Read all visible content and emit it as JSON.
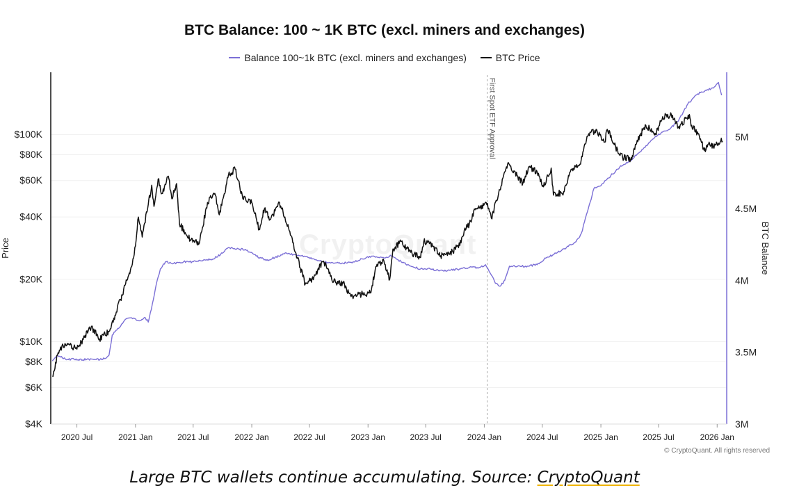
{
  "chart_data": {
    "type": "line",
    "title": "BTC Balance: 100 ~ 1K BTC (excl. miners and exchanges)",
    "legend": [
      "Balance 100~1k BTC (excl. miners and exchanges)",
      "BTC Price"
    ],
    "legend_placement": "top-center",
    "grid": true,
    "xlim": [
      "2020-04-10",
      "2026-01-31"
    ],
    "x_ticks": [
      {
        "date": "2020-07-01",
        "label": "2020 Jul"
      },
      {
        "date": "2021-01-01",
        "label": "2021 Jan"
      },
      {
        "date": "2021-07-01",
        "label": "2021 Jul"
      },
      {
        "date": "2022-01-01",
        "label": "2022 Jan"
      },
      {
        "date": "2022-07-01",
        "label": "2022 Jul"
      },
      {
        "date": "2023-01-01",
        "label": "2023 Jan"
      },
      {
        "date": "2023-07-01",
        "label": "2023 Jul"
      },
      {
        "date": "2024-01-01",
        "label": "2024 Jan"
      },
      {
        "date": "2024-07-01",
        "label": "2024 Jul"
      },
      {
        "date": "2025-01-01",
        "label": "2025 Jan"
      },
      {
        "date": "2025-07-01",
        "label": "2025 Jul"
      },
      {
        "date": "2026-01-01",
        "label": "2026 Jan"
      }
    ],
    "left_axis": {
      "label": "Price",
      "scale": "log",
      "range": [
        4000,
        200000
      ],
      "ticks": [
        {
          "value": 4000,
          "label": "$4K"
        },
        {
          "value": 6000,
          "label": "$6K"
        },
        {
          "value": 8000,
          "label": "$8K"
        },
        {
          "value": 10000,
          "label": "$10K"
        },
        {
          "value": 20000,
          "label": "$20K"
        },
        {
          "value": 40000,
          "label": "$40K"
        },
        {
          "value": 60000,
          "label": "$60K"
        },
        {
          "value": 80000,
          "label": "$80K"
        },
        {
          "value": 100000,
          "label": "$100K"
        }
      ]
    },
    "right_axis": {
      "label": "BTC Balance",
      "scale": "linear",
      "range": [
        3000000,
        5450000
      ],
      "ticks": [
        {
          "value": 3000000,
          "label": "3M"
        },
        {
          "value": 3500000,
          "label": "3.5M"
        },
        {
          "value": 4000000,
          "label": "4M"
        },
        {
          "value": 4500000,
          "label": "4.5M"
        },
        {
          "value": 5000000,
          "label": "5M"
        }
      ]
    },
    "annotation": {
      "date": "2024-01-10",
      "label": "First Spot ETF Approval"
    },
    "series": [
      {
        "name": "Balance 100~1k BTC (excl. miners and exchanges)",
        "color": "#7b6fd6",
        "axis": "right",
        "points": [
          [
            "2020-04-15",
            3440000
          ],
          [
            "2020-05-01",
            3480000
          ],
          [
            "2020-06-01",
            3450000
          ],
          [
            "2020-08-01",
            3450000
          ],
          [
            "2020-09-20",
            3450000
          ],
          [
            "2020-10-10",
            3480000
          ],
          [
            "2020-10-20",
            3620000
          ],
          [
            "2020-11-15",
            3680000
          ],
          [
            "2020-12-01",
            3730000
          ],
          [
            "2020-12-20",
            3740000
          ],
          [
            "2021-01-15",
            3720000
          ],
          [
            "2021-02-01",
            3740000
          ],
          [
            "2021-02-10",
            3710000
          ],
          [
            "2021-02-20",
            3800000
          ],
          [
            "2021-03-01",
            3900000
          ],
          [
            "2021-03-10",
            4000000
          ],
          [
            "2021-03-20",
            4080000
          ],
          [
            "2021-04-05",
            4130000
          ],
          [
            "2021-05-01",
            4120000
          ],
          [
            "2021-06-01",
            4130000
          ],
          [
            "2021-07-01",
            4130000
          ],
          [
            "2021-08-01",
            4140000
          ],
          [
            "2021-09-01",
            4150000
          ],
          [
            "2021-10-01",
            4190000
          ],
          [
            "2021-10-20",
            4230000
          ],
          [
            "2021-11-20",
            4220000
          ],
          [
            "2021-12-15",
            4210000
          ],
          [
            "2022-01-15",
            4170000
          ],
          [
            "2022-02-15",
            4140000
          ],
          [
            "2022-03-15",
            4160000
          ],
          [
            "2022-04-15",
            4190000
          ],
          [
            "2022-05-15",
            4180000
          ],
          [
            "2022-06-15",
            4170000
          ],
          [
            "2022-07-15",
            4150000
          ],
          [
            "2022-08-15",
            4130000
          ],
          [
            "2022-09-15",
            4120000
          ],
          [
            "2022-10-15",
            4120000
          ],
          [
            "2022-11-15",
            4130000
          ],
          [
            "2022-12-15",
            4150000
          ],
          [
            "2023-01-15",
            4170000
          ],
          [
            "2023-02-15",
            4160000
          ],
          [
            "2023-03-15",
            4170000
          ],
          [
            "2023-04-15",
            4130000
          ],
          [
            "2023-05-15",
            4100000
          ],
          [
            "2023-06-15",
            4080000
          ],
          [
            "2023-07-15",
            4080000
          ],
          [
            "2023-08-15",
            4070000
          ],
          [
            "2023-09-15",
            4070000
          ],
          [
            "2023-10-15",
            4080000
          ],
          [
            "2023-11-15",
            4090000
          ],
          [
            "2023-12-15",
            4090000
          ],
          [
            "2024-01-05",
            4110000
          ],
          [
            "2024-01-20",
            4050000
          ],
          [
            "2024-02-05",
            3980000
          ],
          [
            "2024-02-20",
            3960000
          ],
          [
            "2024-03-05",
            4000000
          ],
          [
            "2024-03-20",
            4100000
          ],
          [
            "2024-04-15",
            4100000
          ],
          [
            "2024-05-15",
            4100000
          ],
          [
            "2024-06-15",
            4110000
          ],
          [
            "2024-07-15",
            4160000
          ],
          [
            "2024-08-15",
            4190000
          ],
          [
            "2024-09-15",
            4230000
          ],
          [
            "2024-10-15",
            4270000
          ],
          [
            "2024-11-01",
            4330000
          ],
          [
            "2024-11-20",
            4480000
          ],
          [
            "2024-12-10",
            4640000
          ],
          [
            "2025-01-01",
            4660000
          ],
          [
            "2025-02-01",
            4730000
          ],
          [
            "2025-03-01",
            4790000
          ],
          [
            "2025-04-01",
            4830000
          ],
          [
            "2025-05-01",
            4890000
          ],
          [
            "2025-06-01",
            4960000
          ],
          [
            "2025-07-01",
            5020000
          ],
          [
            "2025-08-01",
            5050000
          ],
          [
            "2025-09-01",
            5110000
          ],
          [
            "2025-10-01",
            5230000
          ],
          [
            "2025-11-01",
            5300000
          ],
          [
            "2025-12-01",
            5330000
          ],
          [
            "2025-12-20",
            5340000
          ],
          [
            "2026-01-05",
            5380000
          ],
          [
            "2026-01-15",
            5290000
          ]
        ]
      },
      {
        "name": "BTC Price",
        "color": "#111111",
        "axis": "left",
        "points": [
          [
            "2020-04-15",
            6800
          ],
          [
            "2020-05-01",
            8600
          ],
          [
            "2020-05-15",
            9500
          ],
          [
            "2020-06-01",
            9800
          ],
          [
            "2020-07-01",
            9200
          ],
          [
            "2020-07-25",
            10500
          ],
          [
            "2020-08-15",
            11800
          ],
          [
            "2020-09-10",
            10300
          ],
          [
            "2020-10-10",
            11200
          ],
          [
            "2020-10-25",
            13000
          ],
          [
            "2020-11-15",
            16000
          ],
          [
            "2020-12-01",
            19000
          ],
          [
            "2020-12-20",
            23000
          ],
          [
            "2021-01-01",
            29000
          ],
          [
            "2021-01-10",
            40000
          ],
          [
            "2021-01-22",
            32000
          ],
          [
            "2021-02-10",
            46000
          ],
          [
            "2021-02-21",
            57000
          ],
          [
            "2021-02-28",
            45000
          ],
          [
            "2021-03-13",
            61000
          ],
          [
            "2021-03-25",
            52000
          ],
          [
            "2021-04-14",
            63000
          ],
          [
            "2021-04-25",
            49000
          ],
          [
            "2021-05-10",
            58000
          ],
          [
            "2021-05-19",
            37000
          ],
          [
            "2021-06-22",
            31000
          ],
          [
            "2021-07-20",
            29800
          ],
          [
            "2021-08-15",
            47000
          ],
          [
            "2021-09-07",
            52000
          ],
          [
            "2021-09-21",
            41000
          ],
          [
            "2021-10-20",
            64000
          ],
          [
            "2021-11-10",
            68000
          ],
          [
            "2021-12-04",
            49000
          ],
          [
            "2022-01-01",
            47000
          ],
          [
            "2022-01-24",
            35000
          ],
          [
            "2022-02-10",
            44000
          ],
          [
            "2022-03-01",
            39000
          ],
          [
            "2022-03-29",
            47000
          ],
          [
            "2022-04-15",
            40000
          ],
          [
            "2022-05-10",
            30000
          ],
          [
            "2022-06-18",
            19000
          ],
          [
            "2022-07-15",
            20500
          ],
          [
            "2022-08-14",
            24500
          ],
          [
            "2022-09-15",
            19500
          ],
          [
            "2022-10-15",
            19200
          ],
          [
            "2022-11-09",
            16500
          ],
          [
            "2022-12-15",
            17000
          ],
          [
            "2023-01-10",
            17200
          ],
          [
            "2023-01-25",
            23000
          ],
          [
            "2023-02-20",
            24500
          ],
          [
            "2023-03-10",
            20000
          ],
          [
            "2023-03-20",
            28000
          ],
          [
            "2023-04-14",
            30500
          ],
          [
            "2023-05-15",
            27000
          ],
          [
            "2023-06-15",
            25500
          ],
          [
            "2023-06-25",
            30500
          ],
          [
            "2023-07-15",
            30000
          ],
          [
            "2023-08-17",
            26000
          ],
          [
            "2023-09-15",
            26500
          ],
          [
            "2023-10-20",
            30000
          ],
          [
            "2023-10-30",
            34500
          ],
          [
            "2023-11-15",
            37000
          ],
          [
            "2023-12-05",
            44000
          ],
          [
            "2024-01-11",
            46500
          ],
          [
            "2024-01-23",
            39500
          ],
          [
            "2024-02-15",
            52000
          ],
          [
            "2024-03-05",
            66000
          ],
          [
            "2024-03-14",
            72000
          ],
          [
            "2024-04-15",
            63000
          ],
          [
            "2024-05-01",
            58000
          ],
          [
            "2024-05-20",
            70000
          ],
          [
            "2024-06-15",
            66000
          ],
          [
            "2024-07-05",
            56000
          ],
          [
            "2024-07-29",
            69000
          ],
          [
            "2024-08-05",
            51000
          ],
          [
            "2024-09-06",
            53000
          ],
          [
            "2024-09-27",
            66000
          ],
          [
            "2024-10-29",
            72000
          ],
          [
            "2024-11-13",
            90000
          ],
          [
            "2024-11-22",
            99000
          ],
          [
            "2024-12-17",
            106000
          ],
          [
            "2025-01-13",
            92000
          ],
          [
            "2025-01-21",
            106000
          ],
          [
            "2025-02-28",
            80000
          ],
          [
            "2025-03-10",
            78000
          ],
          [
            "2025-04-08",
            76000
          ],
          [
            "2025-04-25",
            94000
          ],
          [
            "2025-05-22",
            111000
          ],
          [
            "2025-06-22",
            100000
          ],
          [
            "2025-07-14",
            122000
          ],
          [
            "2025-08-14",
            124000
          ],
          [
            "2025-09-01",
            108000
          ],
          [
            "2025-10-06",
            125000
          ],
          [
            "2025-10-11",
            110000
          ],
          [
            "2025-11-04",
            101000
          ],
          [
            "2025-11-21",
            84000
          ],
          [
            "2025-12-05",
            90000
          ],
          [
            "2025-12-20",
            87000
          ],
          [
            "2026-01-05",
            91000
          ],
          [
            "2026-01-14",
            96000
          ],
          [
            "2026-01-18",
            93000
          ]
        ]
      }
    ]
  },
  "watermark": "CryptoQuant",
  "copyright": "© CryptoQuant. All rights reserved",
  "caption": {
    "text": "Large BTC wallets continue accumulating. Source: ",
    "link_text": "CryptoQuant"
  }
}
